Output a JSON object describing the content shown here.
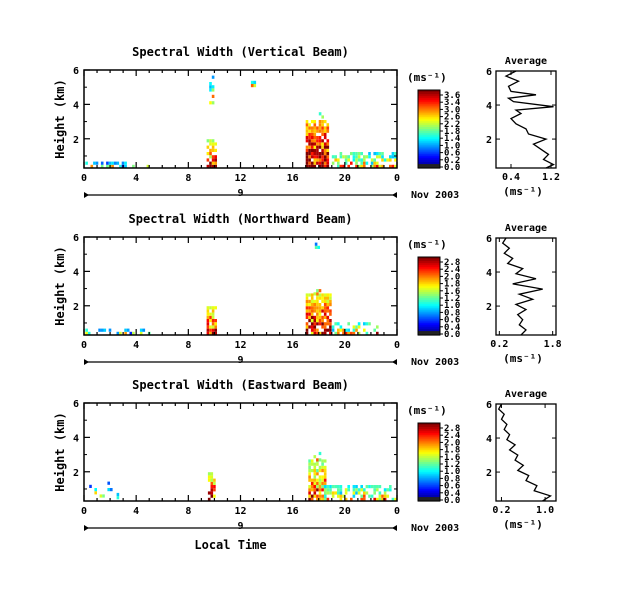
{
  "chart_data": [
    {
      "type": "heatmap",
      "title": "Spectral Width (Vertical Beam)",
      "ylabel": "Height (km)",
      "yticks": [
        "6",
        "4",
        "2"
      ],
      "ylim": [
        0.3,
        6
      ],
      "xticks": [
        "0",
        "4",
        "8",
        "12",
        "16",
        "20",
        "0"
      ],
      "xlim": [
        0,
        24
      ],
      "date_label": "9",
      "month_label": "Nov 2003",
      "colorbar": {
        "unit_label": "(ms⁻¹)",
        "tick_labels": [
          "3.6",
          "3.4",
          "3.0",
          "2.6",
          "2.2",
          "1.8",
          "1.4",
          "1.0",
          "0.6",
          "0.2",
          "0.0"
        ]
      },
      "average_profile": {
        "title": "Average",
        "xticks": [
          "0.4",
          "1.2"
        ],
        "xlim": [
          0.1,
          1.3
        ],
        "yticks": [
          "6",
          "4",
          "2"
        ],
        "ylim": [
          0.3,
          6
        ],
        "unit_label": "(ms⁻¹)",
        "points": [
          [
            0.5,
            6.0
          ],
          [
            0.3,
            5.7
          ],
          [
            0.55,
            5.4
          ],
          [
            0.35,
            5.1
          ],
          [
            0.4,
            4.8
          ],
          [
            0.9,
            4.6
          ],
          [
            0.35,
            4.4
          ],
          [
            0.45,
            4.2
          ],
          [
            1.25,
            3.9
          ],
          [
            0.5,
            3.7
          ],
          [
            0.6,
            3.5
          ],
          [
            0.4,
            3.2
          ],
          [
            0.5,
            2.9
          ],
          [
            0.7,
            2.6
          ],
          [
            0.75,
            2.3
          ],
          [
            1.1,
            2.0
          ],
          [
            0.85,
            1.7
          ],
          [
            1.0,
            1.4
          ],
          [
            1.15,
            1.1
          ],
          [
            1.05,
            0.8
          ],
          [
            1.25,
            0.5
          ],
          [
            1.1,
            0.3
          ]
        ]
      }
    },
    {
      "type": "heatmap",
      "title": "Spectral Width (Northward Beam)",
      "ylabel": "Height (km)",
      "yticks": [
        "6",
        "4",
        "2"
      ],
      "ylim": [
        0.3,
        6
      ],
      "xticks": [
        "0",
        "4",
        "8",
        "12",
        "16",
        "20",
        "0"
      ],
      "xlim": [
        0,
        24
      ],
      "date_label": "9",
      "month_label": "Nov 2003",
      "colorbar": {
        "unit_label": "(ms⁻¹)",
        "tick_labels": [
          "2.8",
          "2.4",
          "2.0",
          "1.8",
          "1.6",
          "1.2",
          "1.0",
          "0.8",
          "0.6",
          "0.4",
          "0.0"
        ]
      },
      "average_profile": {
        "title": "Average",
        "xticks": [
          "0.2",
          "1.8"
        ],
        "xlim": [
          0.1,
          1.9
        ],
        "yticks": [
          "6",
          "4",
          "2"
        ],
        "ylim": [
          0.3,
          6
        ],
        "unit_label": "(ms⁻¹)",
        "points": [
          [
            0.4,
            6.0
          ],
          [
            0.3,
            5.7
          ],
          [
            0.5,
            5.4
          ],
          [
            0.35,
            5.1
          ],
          [
            0.6,
            4.8
          ],
          [
            0.45,
            4.5
          ],
          [
            0.9,
            4.2
          ],
          [
            0.7,
            3.9
          ],
          [
            1.3,
            3.6
          ],
          [
            0.6,
            3.3
          ],
          [
            1.5,
            3.0
          ],
          [
            0.8,
            2.7
          ],
          [
            1.2,
            2.4
          ],
          [
            0.7,
            2.1
          ],
          [
            1.0,
            1.8
          ],
          [
            0.75,
            1.5
          ],
          [
            0.9,
            1.2
          ],
          [
            0.8,
            0.9
          ],
          [
            1.0,
            0.6
          ],
          [
            0.85,
            0.3
          ]
        ]
      }
    },
    {
      "type": "heatmap",
      "title": "Spectral Width (Eastward Beam)",
      "ylabel": "Height (km)",
      "yticks": [
        "6",
        "4",
        "2"
      ],
      "ylim": [
        0.3,
        6
      ],
      "xticks": [
        "0",
        "4",
        "8",
        "12",
        "16",
        "20",
        "0"
      ],
      "xlim": [
        0,
        24
      ],
      "date_label": "9",
      "month_label": "Nov 2003",
      "xlabel": "Local Time",
      "colorbar": {
        "unit_label": "(ms⁻¹)",
        "tick_labels": [
          "2.8",
          "2.4",
          "2.0",
          "1.8",
          "1.6",
          "1.2",
          "1.0",
          "0.8",
          "0.6",
          "0.4",
          "0.0"
        ]
      },
      "average_profile": {
        "title": "Average",
        "xticks": [
          "0.2",
          "1.0"
        ],
        "xlim": [
          0.1,
          1.2
        ],
        "yticks": [
          "6",
          "4",
          "2"
        ],
        "ylim": [
          0.3,
          6
        ],
        "unit_label": "(ms⁻¹)",
        "points": [
          [
            0.2,
            6.0
          ],
          [
            0.15,
            5.7
          ],
          [
            0.25,
            5.4
          ],
          [
            0.2,
            5.1
          ],
          [
            0.3,
            4.8
          ],
          [
            0.25,
            4.5
          ],
          [
            0.35,
            4.2
          ],
          [
            0.3,
            3.9
          ],
          [
            0.45,
            3.6
          ],
          [
            0.35,
            3.3
          ],
          [
            0.5,
            3.0
          ],
          [
            0.45,
            2.7
          ],
          [
            0.6,
            2.4
          ],
          [
            0.5,
            2.1
          ],
          [
            0.7,
            1.8
          ],
          [
            0.65,
            1.5
          ],
          [
            0.85,
            1.2
          ],
          [
            0.8,
            0.9
          ],
          [
            1.1,
            0.6
          ],
          [
            0.95,
            0.3
          ]
        ]
      }
    }
  ]
}
